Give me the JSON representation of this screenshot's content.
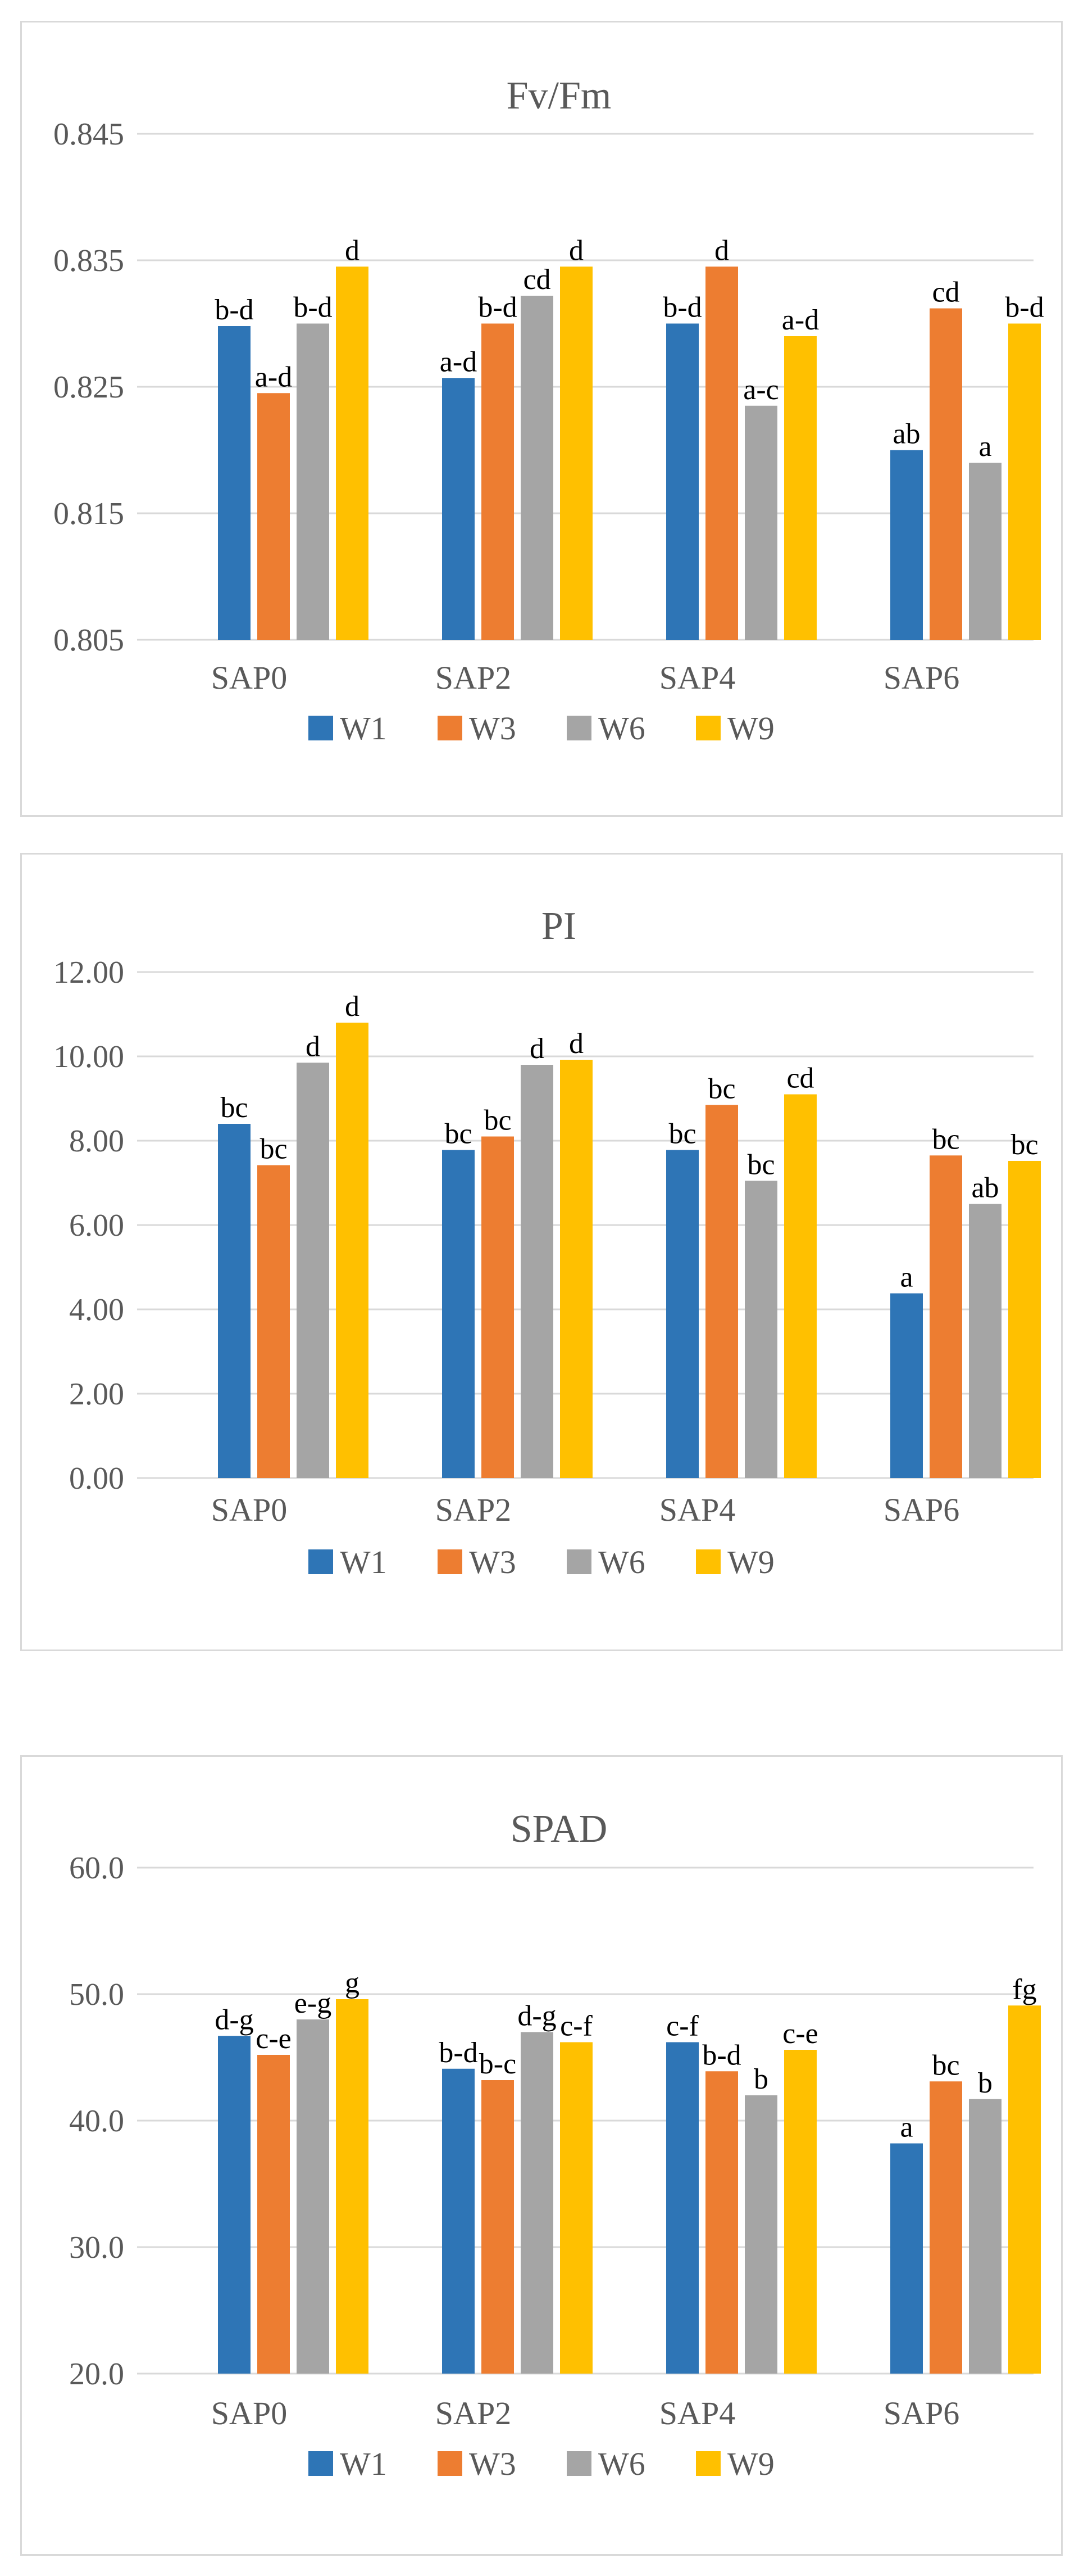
{
  "chart_data": [
    {
      "type": "bar",
      "title": "Fv/Fm",
      "categories": [
        "SAP0",
        "SAP2",
        "SAP4",
        "SAP6"
      ],
      "ylim": [
        0.805,
        0.845
      ],
      "yticks": [
        "0.805",
        "0.815",
        "0.825",
        "0.835",
        "0.845"
      ],
      "ytick_values": [
        0.805,
        0.815,
        0.825,
        0.835,
        0.845
      ],
      "legend_position": "bottom",
      "series": [
        {
          "name": "W1",
          "color": "#2E75B6",
          "values": [
            0.8298,
            0.8257,
            0.83,
            0.82
          ],
          "labels": [
            "b-d",
            "a-d",
            "b-d",
            "ab"
          ]
        },
        {
          "name": "W3",
          "color": "#ED7D31",
          "values": [
            0.8245,
            0.83,
            0.8345,
            0.8312
          ],
          "labels": [
            "a-d",
            "b-d",
            "d",
            "cd"
          ]
        },
        {
          "name": "W6",
          "color": "#A5A5A5",
          "values": [
            0.83,
            0.8322,
            0.8235,
            0.819
          ],
          "labels": [
            "b-d",
            "cd",
            "a-c",
            "a"
          ]
        },
        {
          "name": "W9",
          "color": "#FFC000",
          "values": [
            0.8345,
            0.8345,
            0.829,
            0.83
          ],
          "labels": [
            "d",
            "d",
            "a-d",
            "b-d"
          ]
        }
      ]
    },
    {
      "type": "bar",
      "title": "PI",
      "categories": [
        "SAP0",
        "SAP2",
        "SAP4",
        "SAP6"
      ],
      "ylim": [
        0,
        12
      ],
      "yticks": [
        "0.00",
        "2.00",
        "4.00",
        "6.00",
        "8.00",
        "10.00",
        "12.00"
      ],
      "ytick_values": [
        0,
        2,
        4,
        6,
        8,
        10,
        12
      ],
      "legend_position": "bottom",
      "series": [
        {
          "name": "W1",
          "color": "#2E75B6",
          "values": [
            8.4,
            7.78,
            7.78,
            4.38
          ],
          "labels": [
            "bc",
            "bc",
            "bc",
            "a"
          ]
        },
        {
          "name": "W3",
          "color": "#ED7D31",
          "values": [
            7.42,
            8.1,
            8.85,
            7.65
          ],
          "labels": [
            "bc",
            "bc",
            "bc",
            "bc"
          ]
        },
        {
          "name": "W6",
          "color": "#A5A5A5",
          "values": [
            9.85,
            9.8,
            7.05,
            6.5
          ],
          "labels": [
            "d",
            "d",
            "bc",
            "ab"
          ]
        },
        {
          "name": "W9",
          "color": "#FFC000",
          "values": [
            10.8,
            9.92,
            9.1,
            7.52
          ],
          "labels": [
            "d",
            "d",
            "cd",
            "bc"
          ]
        }
      ]
    },
    {
      "type": "bar",
      "title": "SPAD",
      "categories": [
        "SAP0",
        "SAP2",
        "SAP4",
        "SAP6"
      ],
      "ylim": [
        20,
        60
      ],
      "yticks": [
        "20.0",
        "30.0",
        "40.0",
        "50.0",
        "60.0"
      ],
      "ytick_values": [
        20,
        30,
        40,
        50,
        60
      ],
      "legend_position": "bottom",
      "series": [
        {
          "name": "W1",
          "color": "#2E75B6",
          "values": [
            46.7,
            44.1,
            46.2,
            38.2
          ],
          "labels": [
            "d-g",
            "b-d",
            "c-f",
            "a"
          ]
        },
        {
          "name": "W3",
          "color": "#ED7D31",
          "values": [
            45.2,
            43.2,
            43.9,
            43.1
          ],
          "labels": [
            "c-e",
            "b-c",
            "b-d",
            "bc"
          ]
        },
        {
          "name": "W6",
          "color": "#A5A5A5",
          "values": [
            48.0,
            47.0,
            42.0,
            41.7
          ],
          "labels": [
            "e-g",
            "d-g",
            "b",
            "b"
          ]
        },
        {
          "name": "W9",
          "color": "#FFC000",
          "values": [
            49.6,
            46.2,
            45.6,
            49.1
          ],
          "labels": [
            "g",
            "c-f",
            "c-e",
            "fg"
          ]
        }
      ]
    }
  ]
}
